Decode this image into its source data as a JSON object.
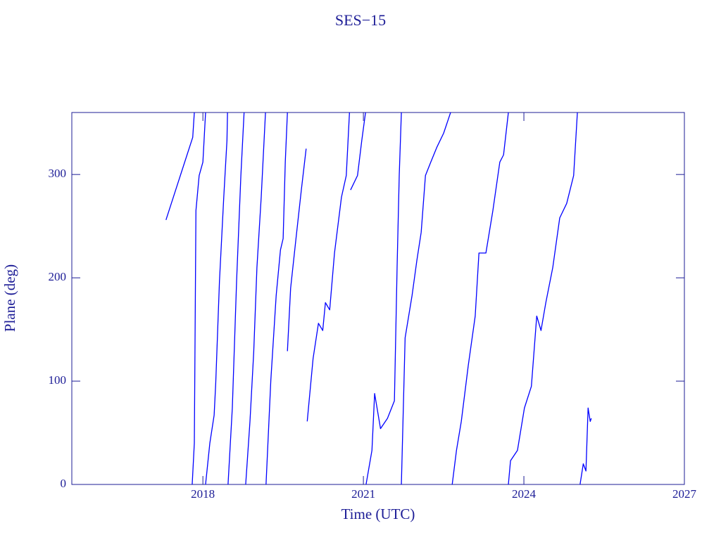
{
  "chart_data": {
    "type": "line",
    "title": "SES−15",
    "x_label": "Time (UTC)",
    "y_label": "Plane (deg)",
    "xlim": [
      2015.55,
      2027.0
    ],
    "xticks": [
      2018,
      2021,
      2024,
      2027
    ],
    "ylim": [
      0,
      360
    ],
    "yticks": [
      0,
      100,
      200,
      300
    ],
    "grid": false,
    "axis_color": "#1c1c96",
    "series": [
      {
        "color": "#0000ff",
        "x": [
          2017.31,
          2017.81,
          2017.84,
          null,
          2017.8,
          2017.84,
          2017.87,
          2017.93,
          2018.0,
          2018.05,
          null,
          2018.05,
          2018.13,
          2018.21,
          2018.24,
          2018.31,
          2018.39,
          2018.45,
          2018.46,
          null,
          2018.47,
          2018.55,
          2018.63,
          2018.71,
          2018.77,
          null,
          2018.8,
          2018.88,
          2018.95,
          2019.01,
          2019.09,
          2019.17,
          null,
          2019.18,
          2019.27,
          2019.37,
          2019.45,
          2019.5,
          2019.54,
          2019.58,
          null,
          2019.58,
          2019.64,
          2019.74,
          2019.84,
          2019.93,
          null,
          2019.95,
          2020.06,
          2020.16,
          2020.24,
          2020.29,
          2020.37,
          2020.46,
          2020.59,
          2020.68,
          2020.74,
          null,
          2020.76,
          2020.89,
          2020.97,
          2021.04,
          null,
          2021.05,
          2021.16,
          2021.21,
          2021.32,
          2021.45,
          2021.58,
          2021.63,
          2021.67,
          2021.71,
          null,
          2021.71,
          2021.78,
          2021.91,
          2022.0,
          2022.08,
          2022.16,
          2022.26,
          2022.37,
          2022.5,
          2022.63,
          null,
          2022.66,
          2022.74,
          2022.83,
          2022.96,
          2023.09,
          2023.16,
          2023.29,
          2023.42,
          2023.55,
          2023.62,
          2023.71,
          null,
          2023.71,
          2023.75,
          2023.88,
          2024.01,
          2024.14,
          2024.24,
          2024.32,
          2024.41,
          2024.54,
          2024.67,
          2024.8,
          2024.93,
          2025.0,
          null,
          2025.05,
          2025.11,
          2025.16,
          2025.2,
          2025.24,
          2025.26
        ],
        "values": [
          256,
          336,
          360,
          null,
          0,
          40,
          265,
          299,
          312,
          360,
          null,
          0,
          40,
          67,
          98,
          197,
          278,
          333,
          360,
          null,
          0,
          74,
          197,
          299,
          360,
          null,
          0,
          61,
          128,
          210,
          278,
          360,
          null,
          0,
          101,
          183,
          227,
          238,
          312,
          360,
          null,
          129,
          190,
          238,
          285,
          325,
          null,
          61,
          122,
          156,
          149,
          176,
          169,
          224,
          278,
          299,
          360,
          null,
          285,
          299,
          333,
          360,
          null,
          0,
          33,
          88,
          54,
          64,
          81,
          210,
          299,
          360,
          null,
          0,
          142,
          183,
          217,
          244,
          299,
          312,
          326,
          340,
          360,
          null,
          0,
          33,
          61,
          115,
          163,
          224,
          224,
          265,
          312,
          319,
          360,
          null,
          0,
          23,
          33,
          74,
          95,
          163,
          149,
          176,
          210,
          258,
          272,
          299,
          360,
          null,
          0,
          20,
          13,
          74,
          61,
          64
        ]
      }
    ]
  }
}
